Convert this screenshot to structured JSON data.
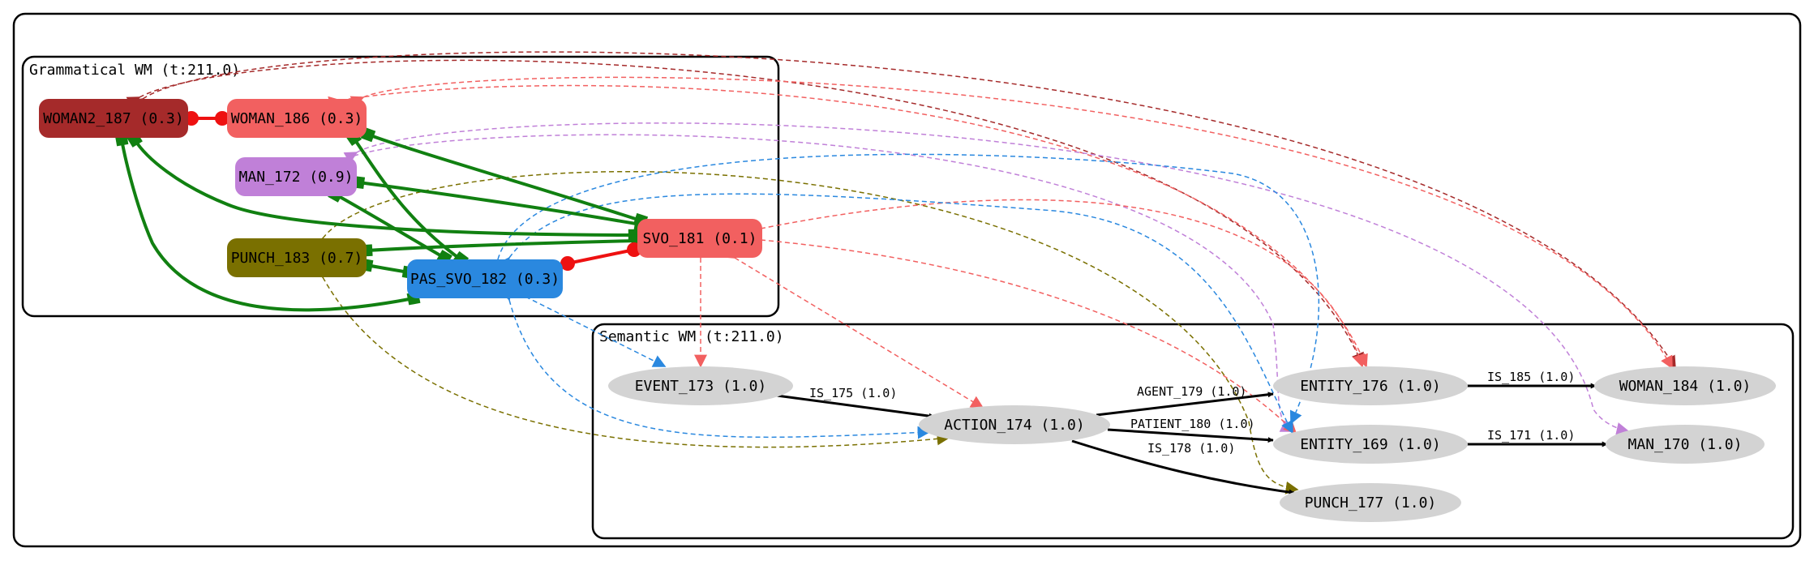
{
  "clusters": {
    "grammatical": {
      "label": "Grammatical WM (t:211.0)"
    },
    "semantic": {
      "label": "Semantic WM (t:211.0)"
    }
  },
  "nodes": {
    "woman2_187": {
      "label": "WOMAN2_187 (0.3)",
      "fill": "#a52a2a"
    },
    "woman_186": {
      "label": "WOMAN_186 (0.3)",
      "fill": "#f26060"
    },
    "man_172": {
      "label": "MAN_172 (0.9)",
      "fill": "#c080d8"
    },
    "punch_183": {
      "label": "PUNCH_183 (0.7)",
      "fill": "#7a7000"
    },
    "svo_181": {
      "label": "SVO_181 (0.1)",
      "fill": "#f26060"
    },
    "pas_svo_182": {
      "label": "PAS_SVO_182 (0.3)",
      "fill": "#2a88df"
    },
    "event_173": {
      "label": "EVENT_173 (1.0)",
      "fill": "#d3d3d3"
    },
    "action_174": {
      "label": "ACTION_174 (1.0)",
      "fill": "#d3d3d3"
    },
    "entity_176": {
      "label": "ENTITY_176 (1.0)",
      "fill": "#d3d3d3"
    },
    "entity_169": {
      "label": "ENTITY_169 (1.0)",
      "fill": "#d3d3d3"
    },
    "punch_177": {
      "label": "PUNCH_177 (1.0)",
      "fill": "#d3d3d3"
    },
    "woman_184": {
      "label": "WOMAN_184 (1.0)",
      "fill": "#d3d3d3"
    },
    "man_170": {
      "label": "MAN_170 (1.0)",
      "fill": "#d3d3d3"
    }
  },
  "edge_labels": {
    "is_175": "IS_175 (1.0)",
    "agent_179": "AGENT_179 (1.0)",
    "patient_180": "PATIENT_180 (1.0)",
    "is_178": "IS_178 (1.0)",
    "is_185": "IS_185 (1.0)",
    "is_171": "IS_171 (1.0)"
  },
  "colors": {
    "competition": "#ee1111",
    "cooperation": "#118011",
    "semantic_link": "#000000",
    "woman2_map": "#a52a2a",
    "woman_map": "#f26060",
    "man_map": "#c080d8",
    "punch_map": "#7a7000",
    "svo_map": "#f26060",
    "pas_svo_map": "#2a88df"
  }
}
